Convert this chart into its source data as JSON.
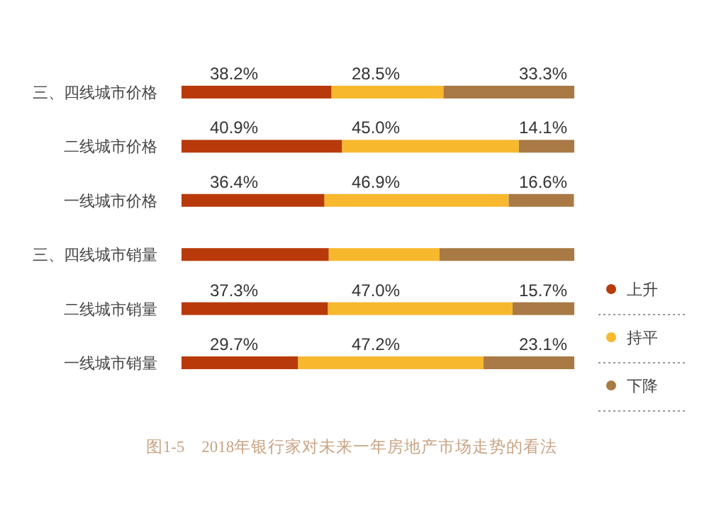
{
  "chart_data": {
    "type": "bar",
    "orientation": "horizontal",
    "stacked": true,
    "categories": [
      "三、四线城市价格",
      "二线城市价格",
      "一线城市价格",
      "三、四线城市销量",
      "二线城市销量",
      "一线城市销量"
    ],
    "series": [
      {
        "name": "上升",
        "color": "#b83a0a",
        "values": [
          38.2,
          40.9,
          36.4,
          37.5,
          37.3,
          29.7
        ],
        "value_labels": [
          "38.2%",
          "40.9%",
          "36.4%",
          null,
          "37.3%",
          "29.7%"
        ]
      },
      {
        "name": "持平",
        "color": "#f7b82e",
        "values": [
          28.5,
          45.0,
          46.9,
          28.2,
          47.0,
          47.2
        ],
        "value_labels": [
          "28.5%",
          "45.0%",
          "46.9%",
          null,
          "47.0%",
          "47.2%"
        ]
      },
      {
        "name": "下降",
        "color": "#a97a45",
        "values": [
          33.3,
          14.1,
          16.6,
          34.3,
          15.7,
          23.1
        ],
        "value_labels": [
          "33.3%",
          "14.1%",
          "16.6%",
          null,
          "15.7%",
          "23.1%"
        ]
      }
    ],
    "xlim": [
      0,
      100
    ],
    "tick_labels": "y",
    "legend": "right",
    "grid": false,
    "annotations": [
      "图1-5　2018年银行家对未来一年房地产市场走势的看法"
    ]
  }
}
